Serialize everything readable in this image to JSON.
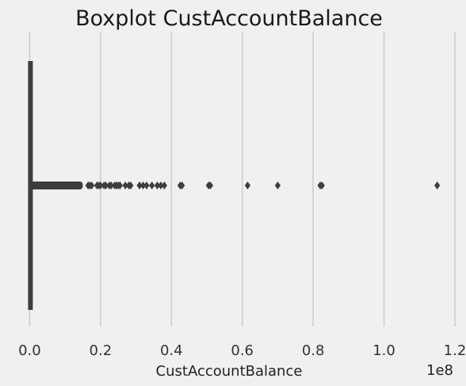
{
  "chart_data": {
    "type": "boxplot",
    "orientation": "horizontal",
    "title": "Boxplot CustAccountBalance",
    "xlabel": "CustAccountBalance",
    "ylabel": "",
    "x_offset_label": "1e8",
    "xlim": [
      -0.03,
      1.2
    ],
    "x_ticks": [
      0.0,
      0.2,
      0.4,
      0.6,
      0.8,
      1.0,
      1.2
    ],
    "x_tick_labels": [
      "0.0",
      "0.2",
      "0.4",
      "0.6",
      "0.8",
      "1.0",
      "1.2"
    ],
    "grid": "x",
    "box": {
      "min": 0.0,
      "q1": 0.0,
      "median": 0.0,
      "q3": 0.0,
      "whisker_high": 0.0015
    },
    "outliers_dense_range": [
      0.0015,
      0.15
    ],
    "outliers": [
      0.165,
      0.17,
      0.175,
      0.19,
      0.195,
      0.2,
      0.21,
      0.215,
      0.225,
      0.23,
      0.24,
      0.245,
      0.25,
      0.255,
      0.27,
      0.28,
      0.285,
      0.31,
      0.32,
      0.33,
      0.345,
      0.36,
      0.37,
      0.38,
      0.425,
      0.43,
      0.505,
      0.51,
      0.615,
      0.7,
      0.82,
      0.825,
      1.15
    ]
  },
  "colors": {
    "background": "#f0f0f0",
    "grid": "#cbcbcb",
    "box": "#3d3d3d",
    "outlier": "#3d3d3d"
  }
}
